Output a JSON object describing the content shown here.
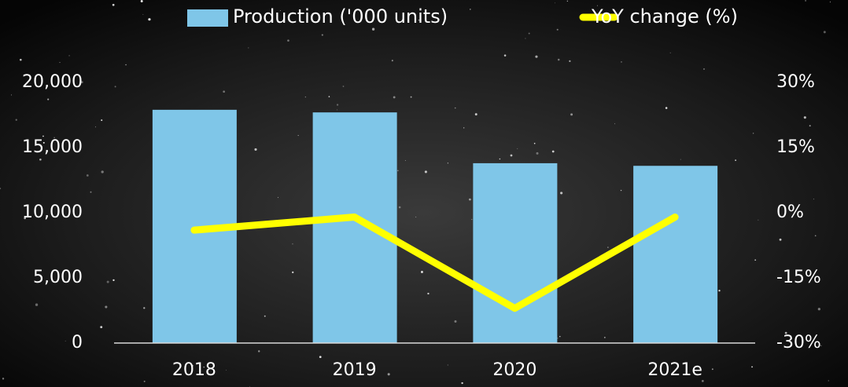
{
  "chart_data": {
    "type": "bar_line",
    "categories": [
      "2018",
      "2019",
      "2020",
      "2021e"
    ],
    "series": [
      {
        "name": "Production ('000 units)",
        "type": "bar",
        "color": "#7fc6e8",
        "values": [
          17900,
          17700,
          13800,
          13600
        ]
      },
      {
        "name": "YoY change (%)",
        "type": "line",
        "axis": "y2",
        "color": "#ffff00",
        "values": [
          -4,
          -1,
          -22,
          -1
        ]
      }
    ],
    "ylim": [
      0,
      20000
    ],
    "yticks": [
      0,
      {
        "value": 5000,
        "label": "5,000"
      },
      {
        "value": 10000,
        "label": "10,000"
      },
      {
        "value": 15000,
        "label": "15,000"
      },
      {
        "value": 20000,
        "label": "20,000"
      }
    ],
    "y2lim": [
      -30,
      30
    ],
    "y2ticks": [
      {
        "value": -30,
        "label": "-30%"
      },
      {
        "value": -15,
        "label": "-15%"
      },
      {
        "value": 0,
        "label": "0%"
      },
      {
        "value": 15,
        "label": "15%"
      },
      {
        "value": 30,
        "label": "30%"
      }
    ],
    "legend": "top"
  }
}
